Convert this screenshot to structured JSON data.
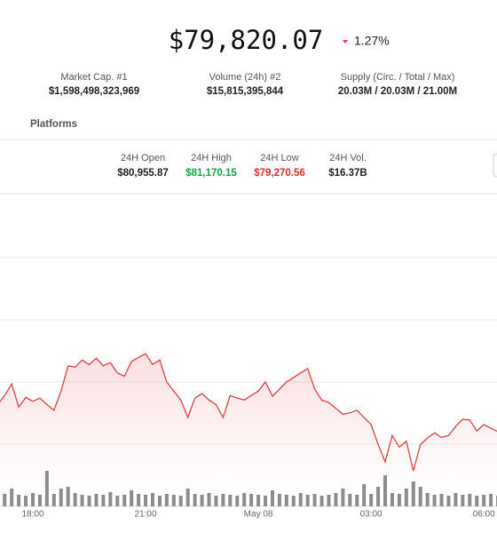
{
  "header": {
    "price": "$79,820.07",
    "change": "1.27%"
  },
  "stats": [
    {
      "label": "Market Cap. #1",
      "value": "$1,598,498,323,969"
    },
    {
      "label": "Volume (24h) #2",
      "value": "$15,815,395,844"
    },
    {
      "label": "Supply (Circ. / Total / Max)",
      "value": "20.03M / 20.03M / 21.00M"
    }
  ],
  "platforms": "Platforms",
  "ohlc": [
    {
      "label": "24H Open",
      "value": "$80,955.87"
    },
    {
      "label": "24H High",
      "value": "$81,170.15"
    },
    {
      "label": "24H Low",
      "value": "$79,270.56"
    },
    {
      "label": "24H Vol.",
      "value": "$16.37B"
    }
  ],
  "chart_data": {
    "type": "line",
    "categories": [
      null,
      null,
      null,
      null,
      null,
      "18:00",
      null,
      null,
      null,
      null,
      null,
      null,
      null,
      null,
      null,
      null,
      null,
      null,
      null,
      null,
      null,
      "21:00",
      null,
      null,
      null,
      null,
      null,
      null,
      null,
      null,
      null,
      null,
      null,
      null,
      null,
      null,
      null,
      "May 08",
      null,
      null,
      null,
      null,
      null,
      null,
      null,
      null,
      null,
      null,
      null,
      null,
      null,
      null,
      null,
      "03:00",
      null,
      null,
      null,
      null,
      null,
      null,
      null,
      null,
      null,
      null,
      null,
      null,
      null,
      null,
      null,
      "06:00",
      null,
      null
    ],
    "ylim": [
      78760,
      82620
    ],
    "y2lim": [
      0,
      280
    ],
    "series": [
      {
        "color": "#e0403f",
        "values": [
          80340,
          80480,
          80660,
          80300,
          80450,
          80390,
          80440,
          80340,
          80250,
          80550,
          80940,
          80920,
          81030,
          80960,
          81060,
          80940,
          80990,
          80830,
          80780,
          81010,
          81070,
          81130,
          80960,
          81030,
          80690,
          80550,
          80410,
          80140,
          80440,
          80510,
          80410,
          80340,
          80140,
          80480,
          80440,
          80410,
          80480,
          80550,
          80690,
          80470,
          80580,
          80690,
          80760,
          80830,
          80900,
          80580,
          80410,
          80370,
          80280,
          80190,
          80210,
          80250,
          80140,
          80030,
          79720,
          79450,
          79860,
          79680,
          79770,
          79310,
          79720,
          79820,
          79900,
          79830,
          79860,
          80000,
          80110,
          80100,
          79930,
          80030,
          79970,
          79920
        ]
      },
      {
        "type": "bar",
        "axis": "y2",
        "color": "#8c8c8c",
        "values": [
          55,
          14,
          20,
          13,
          12,
          15,
          13,
          40,
          14,
          20,
          22,
          15,
          13,
          12,
          14,
          13,
          16,
          12,
          13,
          18,
          14,
          13,
          15,
          12,
          14,
          13,
          12,
          20,
          14,
          13,
          15,
          12,
          14,
          13,
          12,
          15,
          14,
          13,
          12,
          18,
          14,
          13,
          12,
          15,
          13,
          14,
          12,
          13,
          15,
          20,
          14,
          13,
          25,
          14,
          22,
          35,
          15,
          14,
          20,
          28,
          22,
          15,
          13,
          14,
          12,
          15,
          13,
          14,
          12,
          13,
          14,
          12
        ]
      }
    ]
  }
}
